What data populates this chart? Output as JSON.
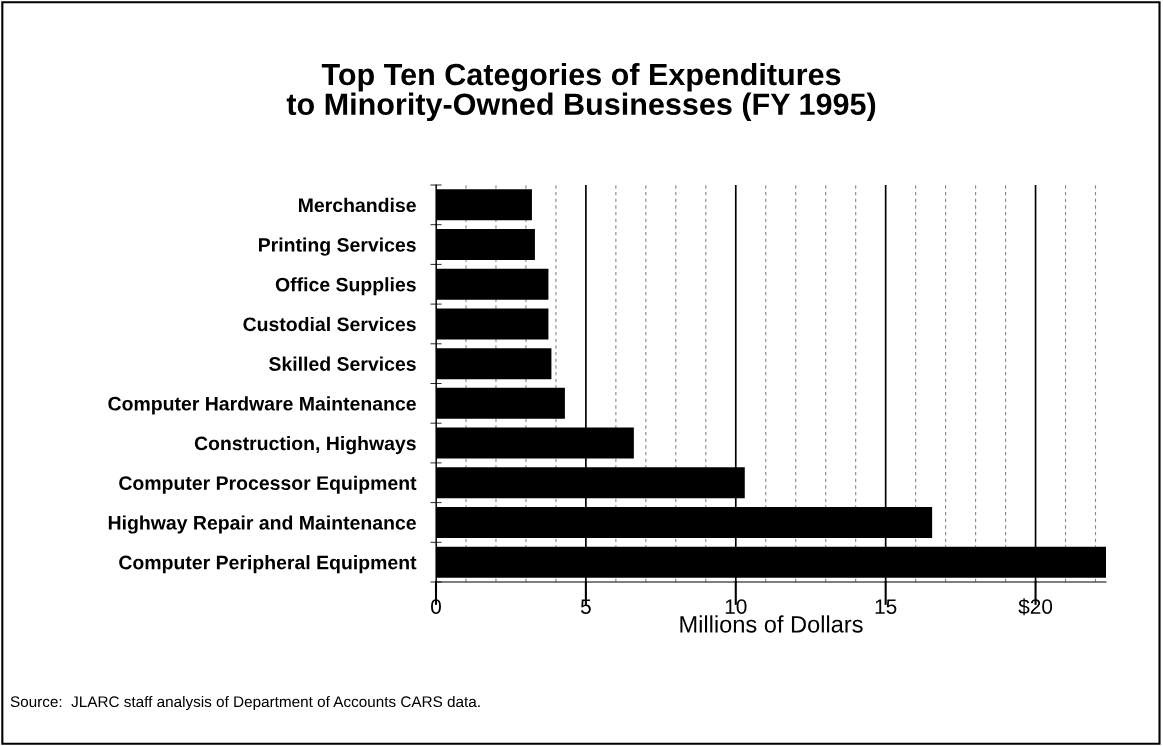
{
  "chart_data": {
    "type": "bar",
    "orientation": "horizontal",
    "title": "Top Ten Categories of Expenditures\nto Minority-Owned Businesses (FY 1995)",
    "xlabel": "Millions of Dollars",
    "categories": [
      "Merchandise",
      "Printing Services",
      "Office Supplies",
      "Custodial Services",
      "Skilled Services",
      "Computer Hardware Maintenance",
      "Construction, Highways",
      "Computer Processor Equipment",
      "Highway Repair and Maintenance",
      "Computer Peripheral Equipment"
    ],
    "values": [
      3.2,
      3.3,
      3.75,
      3.75,
      3.85,
      4.3,
      6.6,
      10.3,
      16.55,
      22.35
    ],
    "color": "#000000",
    "xlim": [
      0,
      22.35
    ],
    "xticks": [
      0,
      {
        "value": 1,
        "label": null
      },
      {
        "value": 2,
        "label": null
      },
      {
        "value": 3,
        "label": null
      },
      {
        "value": 4,
        "label": null
      },
      5,
      {
        "value": 6,
        "label": null
      },
      {
        "value": 7,
        "label": null
      },
      {
        "value": 8,
        "label": null
      },
      {
        "value": 9,
        "label": null
      },
      10,
      {
        "value": 11,
        "label": null
      },
      {
        "value": 12,
        "label": null
      },
      {
        "value": 13,
        "label": null
      },
      {
        "value": 14,
        "label": null
      },
      15,
      {
        "value": 16,
        "label": null
      },
      {
        "value": 17,
        "label": null
      },
      {
        "value": 18,
        "label": null
      },
      {
        "value": 19,
        "label": null
      },
      {
        "value": 20,
        "label": "$20"
      },
      {
        "value": 21,
        "label": null
      },
      {
        "value": 22,
        "label": null
      }
    ],
    "grid": "x",
    "annotations": [
      "Source:  JLARC staff analysis of Department of Accounts CARS data."
    ]
  }
}
